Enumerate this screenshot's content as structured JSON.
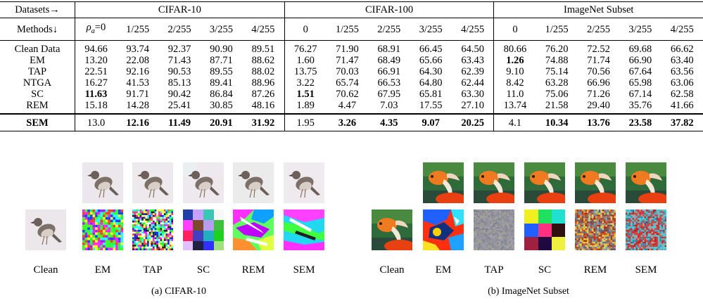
{
  "table": {
    "header_datasets_label": "Datasets→",
    "header_methods_label": "Methods↓",
    "datasets": [
      "CIFAR-10",
      "CIFAR-100",
      "ImageNet Subset"
    ],
    "cifar10_cols": [
      "ρa=0",
      "1/255",
      "2/255",
      "3/255",
      "4/255"
    ],
    "other_cols": [
      "0",
      "1/255",
      "2/255",
      "3/255",
      "4/255"
    ],
    "rows": [
      {
        "method": "Clean Data",
        "values": [
          "94.66",
          "93.74",
          "92.37",
          "90.90",
          "89.51",
          "76.27",
          "71.90",
          "68.91",
          "66.45",
          "64.50",
          "80.66",
          "76.20",
          "72.52",
          "69.68",
          "66.62"
        ]
      },
      {
        "method": "EM",
        "values": [
          "13.20",
          "22.08",
          "71.43",
          "87.71",
          "88.62",
          "1.60",
          "71.47",
          "68.49",
          "65.66",
          "63.43",
          "1.26",
          "74.88",
          "71.74",
          "66.90",
          "63.40"
        ]
      },
      {
        "method": "TAP",
        "values": [
          "22.51",
          "92.16",
          "90.53",
          "89.55",
          "88.02",
          "13.75",
          "70.03",
          "66.91",
          "64.30",
          "62.39",
          "9.10",
          "75.14",
          "70.56",
          "67.64",
          "63.56"
        ]
      },
      {
        "method": "NTGA",
        "values": [
          "16.27",
          "41.53",
          "85.13",
          "89.41",
          "88.96",
          "3.22",
          "65.74",
          "66.53",
          "64.80",
          "62.44",
          "8.42",
          "63.28",
          "66.96",
          "65.98",
          "63.06"
        ]
      },
      {
        "method": "SC",
        "values": [
          "11.63",
          "91.71",
          "90.42",
          "86.84",
          "87.26",
          "1.51",
          "70.62",
          "67.95",
          "65.81",
          "63.30",
          "11.0",
          "75.06",
          "71.26",
          "67.14",
          "62.58"
        ]
      },
      {
        "method": "REM",
        "values": [
          "15.18",
          "14.28",
          "25.41",
          "30.85",
          "48.16",
          "1.89",
          "4.47",
          "7.03",
          "17.55",
          "27.10",
          "13.74",
          "21.58",
          "29.40",
          "35.76",
          "41.66"
        ]
      }
    ],
    "sem_row": {
      "method": "SEM",
      "values": [
        "13.0",
        "12.16",
        "11.49",
        "20.91",
        "31.92",
        "1.95",
        "3.26",
        "4.35",
        "9.07",
        "20.25",
        "4.1",
        "10.34",
        "13.76",
        "23.58",
        "37.82"
      ]
    }
  },
  "figure": {
    "labels": [
      "Clean",
      "EM",
      "TAP",
      "SC",
      "REM",
      "SEM"
    ],
    "caption_a": "(a) CIFAR-10",
    "caption_b": "(b) ImageNet Subset"
  }
}
